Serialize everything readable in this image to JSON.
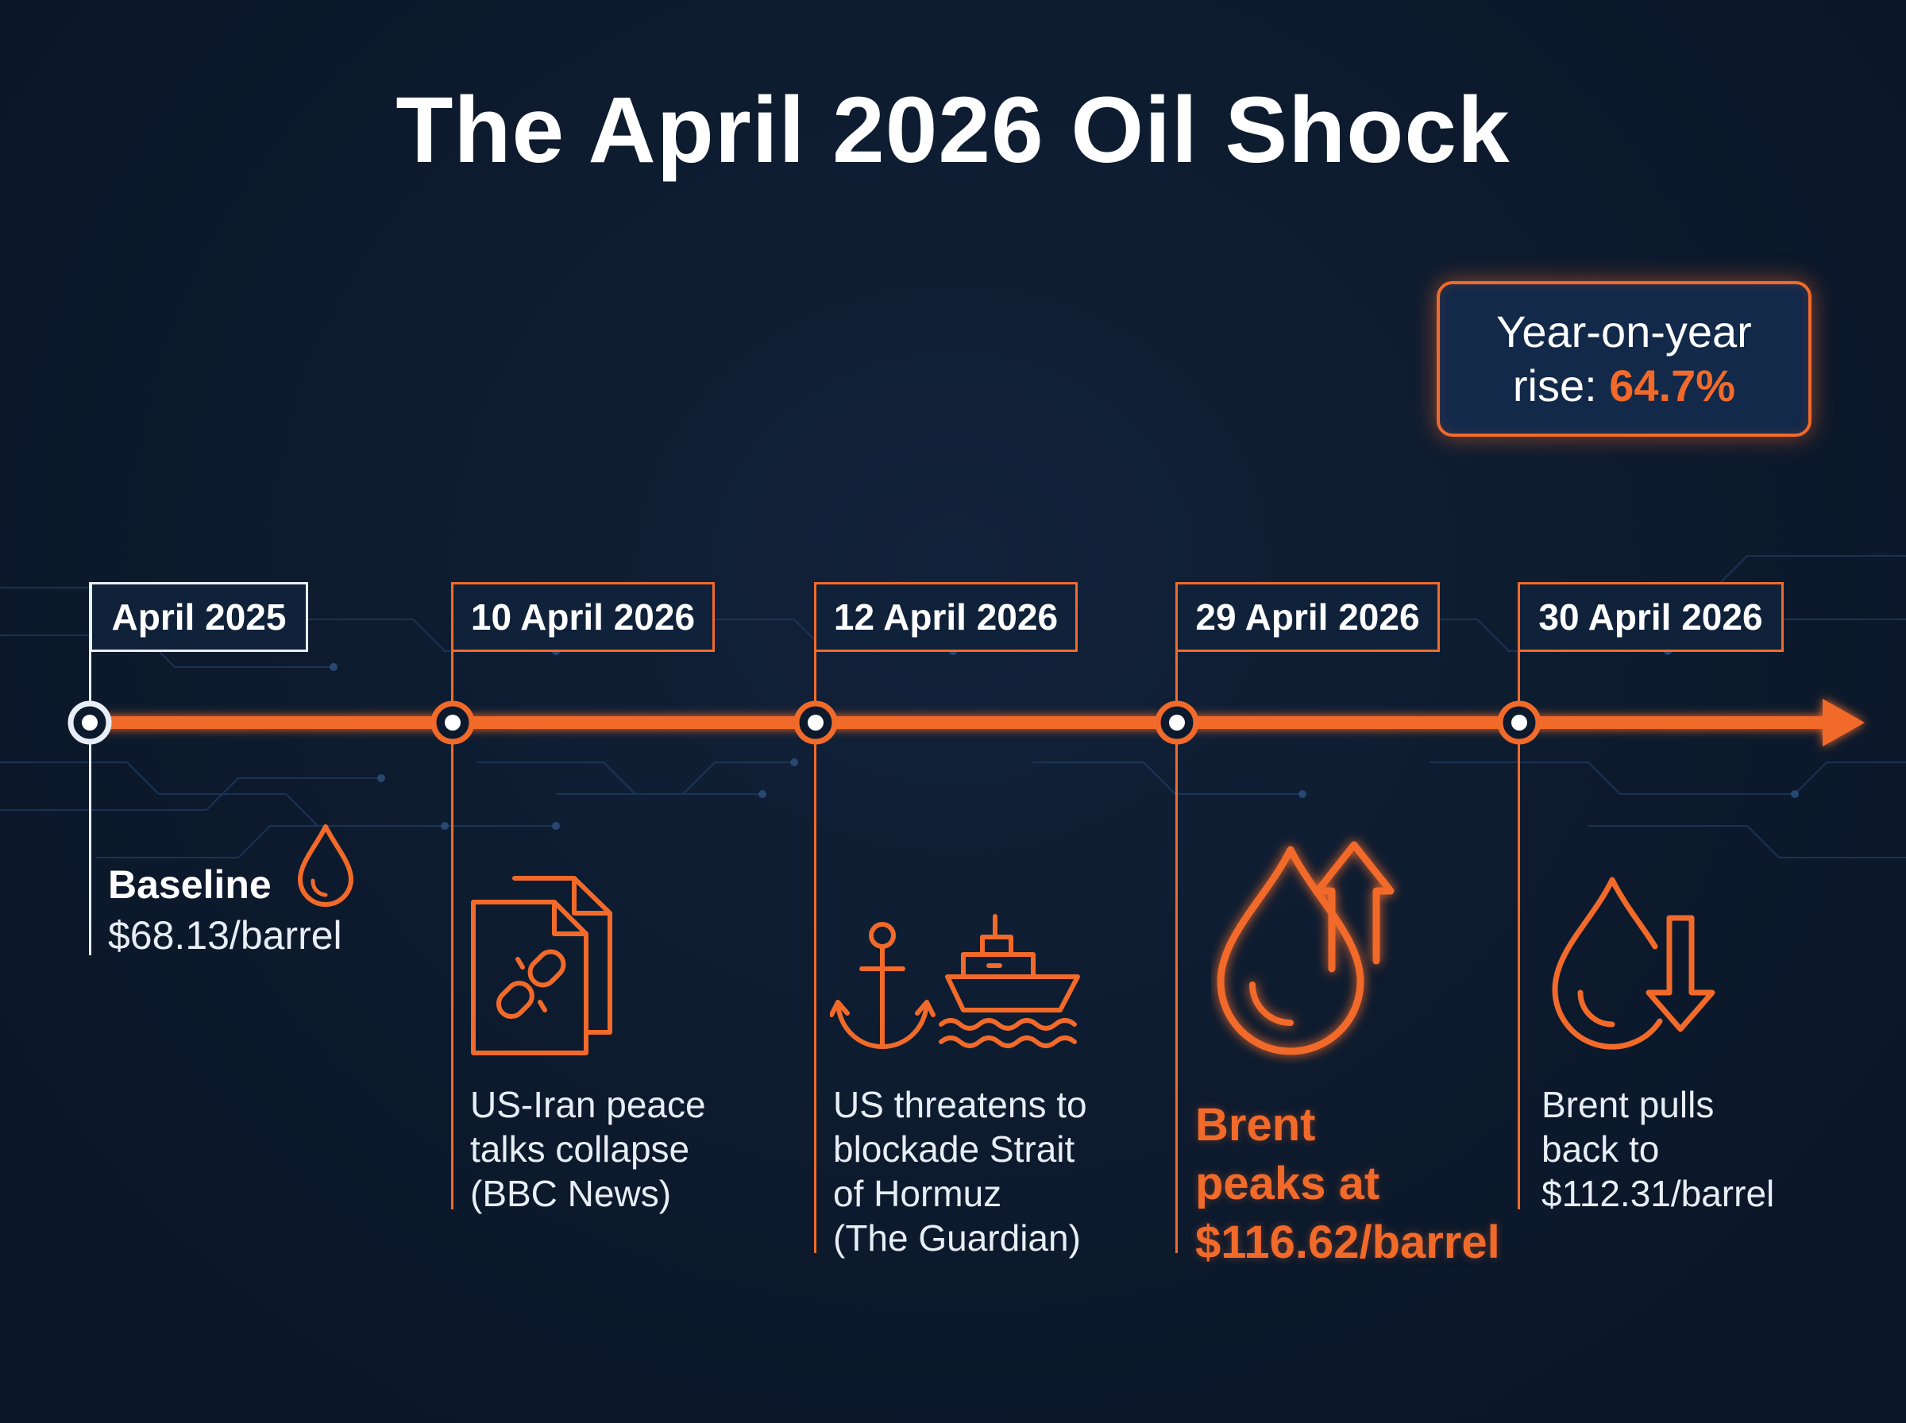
{
  "title": "The April 2026 Oil Shock",
  "yoy": {
    "label": "Year-on-year rise:",
    "label_line1": "Year-on-year",
    "label_line2": "rise:",
    "value": "64.7%"
  },
  "colors": {
    "accent": "#f26a2a",
    "background": "#0d1a2d",
    "text": "#ffffff",
    "muted_text": "#e8eef5"
  },
  "events": [
    {
      "date": "April 2025",
      "lines": [
        "Baseline",
        "$68.13/barrel"
      ],
      "icon": "oil-drop-icon"
    },
    {
      "date": "10 April 2026",
      "lines": [
        "US-Iran peace",
        "talks collapse",
        "(BBC News)"
      ],
      "icon": "broken-link-document-icon"
    },
    {
      "date": "12 April 2026",
      "lines": [
        "US threatens to",
        "blockade Strait",
        "of Hormuz",
        "(The Guardian)"
      ],
      "icon": "anchor-ship-icon"
    },
    {
      "date": "29 April 2026",
      "lines": [
        "Brent",
        "peaks at",
        "$116.62/barrel"
      ],
      "icon": "oil-drop-up-arrow-icon"
    },
    {
      "date": "30 April 2026",
      "lines": [
        "Brent pulls",
        "back to",
        "$112.31/barrel"
      ],
      "icon": "oil-drop-down-arrow-icon"
    }
  ]
}
